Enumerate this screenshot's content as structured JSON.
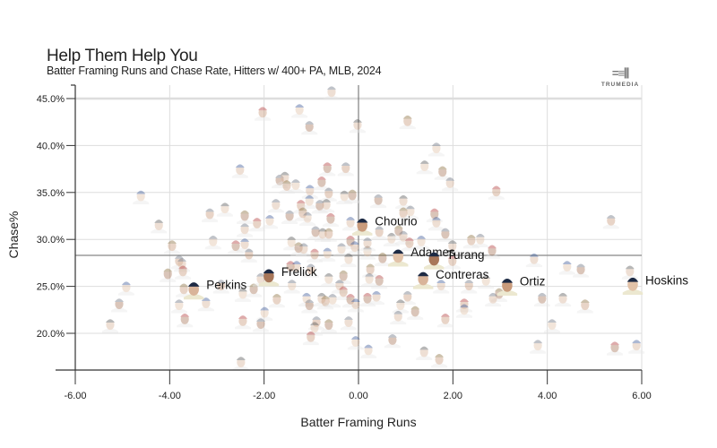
{
  "header": {
    "title": "Help Them Help You",
    "subtitle": "Batter Framing Runs and Chase Rate, Hitters w/ 400+ PA, MLB, 2024",
    "logo_text": "TRUMEDIA"
  },
  "chart_data": {
    "type": "scatter",
    "title": "Help Them Help You",
    "subtitle": "Batter Framing Runs and Chase Rate, Hitters w/ 400+ PA, MLB, 2024",
    "xlabel": "Batter Framing Runs",
    "ylabel": "Chase%",
    "xlim": [
      -6,
      6
    ],
    "ylim": [
      16.1,
      46.4
    ],
    "x_ticks": [
      "-6.00",
      "-4.00",
      "-2.00",
      "0.00",
      "2.00",
      "4.00",
      "6.00"
    ],
    "x_tick_values": [
      -6,
      -4,
      -2,
      0,
      2,
      4,
      6
    ],
    "y_ticks": [
      "20.0%",
      "25.0%",
      "30.0%",
      "35.0%",
      "40.0%",
      "45.0%"
    ],
    "y_tick_values": [
      20,
      25,
      30,
      35,
      40,
      45
    ],
    "grid": true,
    "reference_lines": {
      "x": 0,
      "y": 28.3
    },
    "marker": "player headshot",
    "colors": {
      "highlight_cap": "#1d2a44",
      "grid": "#dddddd",
      "axis": "#333333",
      "ref_line": "#888888"
    },
    "highlighted": [
      {
        "label": "Chourio",
        "x": 0.08,
        "y": 31.6
      },
      {
        "label": "Adames",
        "x": 0.84,
        "y": 28.3
      },
      {
        "label": "Turang",
        "x": 1.6,
        "y": 28.0
      },
      {
        "label": "Contreras",
        "x": 1.37,
        "y": 25.9
      },
      {
        "label": "Ortiz",
        "x": 3.15,
        "y": 25.2
      },
      {
        "label": "Hoskins",
        "x": 5.81,
        "y": 25.3
      },
      {
        "label": "Frelick",
        "x": -1.9,
        "y": 26.2
      },
      {
        "label": "Perkins",
        "x": -3.49,
        "y": 24.8
      }
    ],
    "others": [
      [
        -0.57,
        45.8
      ],
      [
        -2.03,
        43.6
      ],
      [
        -1.25,
        43.9
      ],
      [
        -1.04,
        42.1
      ],
      [
        -0.02,
        42.3
      ],
      [
        1.04,
        42.7
      ],
      [
        1.65,
        39.8
      ],
      [
        -0.66,
        37.7
      ],
      [
        -2.51,
        37.5
      ],
      [
        -0.27,
        37.7
      ],
      [
        1.4,
        37.9
      ],
      [
        1.78,
        37.3
      ],
      [
        1.94,
        36.1
      ],
      [
        2.92,
        35.2
      ],
      [
        -4.61,
        34.7
      ],
      [
        -1.67,
        36.4
      ],
      [
        -1.56,
        36.7
      ],
      [
        -1.52,
        35.8
      ],
      [
        -1.33,
        35.9
      ],
      [
        -0.78,
        36.2
      ],
      [
        -1.03,
        35.3
      ],
      [
        -0.63,
        35.0
      ],
      [
        -0.3,
        34.7
      ],
      [
        -0.13,
        34.8
      ],
      [
        -1.75,
        33.8
      ],
      [
        -1.22,
        33.7
      ],
      [
        -1.04,
        34.2
      ],
      [
        -0.82,
        33.7
      ],
      [
        -0.68,
        33.8
      ],
      [
        -1.18,
        32.9
      ],
      [
        -1.08,
        32.4
      ],
      [
        -0.59,
        32.3
      ],
      [
        -0.17,
        31.9
      ],
      [
        -3.15,
        32.8
      ],
      [
        -2.83,
        33.4
      ],
      [
        -2.41,
        32.6
      ],
      [
        -2.41,
        31.2
      ],
      [
        -2.15,
        31.8
      ],
      [
        -1.88,
        32.1
      ],
      [
        -1.46,
        32.6
      ],
      [
        -4.23,
        31.6
      ],
      [
        -3.95,
        29.4
      ],
      [
        -3.08,
        29.9
      ],
      [
        -2.6,
        29.4
      ],
      [
        -2.41,
        29.6
      ],
      [
        -2.32,
        28.5
      ],
      [
        -1.42,
        29.8
      ],
      [
        -1.27,
        29.2
      ],
      [
        -1.16,
        29.1
      ],
      [
        -0.93,
        28.5
      ],
      [
        -0.66,
        28.6
      ],
      [
        -0.91,
        30.9
      ],
      [
        -0.76,
        30.7
      ],
      [
        -0.63,
        30.7
      ],
      [
        -0.36,
        29.1
      ],
      [
        -0.17,
        29.9
      ],
      [
        -0.08,
        29.3
      ],
      [
        -3.8,
        27.8
      ],
      [
        -0.21,
        28.0
      ],
      [
        -4.04,
        26.4
      ],
      [
        -3.74,
        27.5
      ],
      [
        -3.72,
        26.7
      ],
      [
        -4.92,
        25.0
      ],
      [
        -5.07,
        23.2
      ],
      [
        -5.26,
        21.0
      ],
      [
        -3.7,
        24.8
      ],
      [
        -3.8,
        23.1
      ],
      [
        -3.68,
        21.6
      ],
      [
        -3.23,
        23.3
      ],
      [
        -2.91,
        25.2
      ],
      [
        -2.45,
        24.3
      ],
      [
        -2.22,
        24.8
      ],
      [
        -2.07,
        25.9
      ],
      [
        -2.45,
        21.4
      ],
      [
        -1.99,
        22.3
      ],
      [
        -2.07,
        21.1
      ],
      [
        -2.49,
        17.0
      ],
      [
        -1.73,
        23.7
      ],
      [
        -1.41,
        25.2
      ],
      [
        -1.44,
        27.2
      ],
      [
        -1.31,
        27.2
      ],
      [
        -1.01,
        26.9
      ],
      [
        -0.63,
        25.9
      ],
      [
        -0.32,
        26.2
      ],
      [
        -0.4,
        25.2
      ],
      [
        -0.32,
        24.5
      ],
      [
        -1.1,
        23.8
      ],
      [
        -1.04,
        23.1
      ],
      [
        -0.78,
        23.8
      ],
      [
        -0.7,
        23.5
      ],
      [
        -0.55,
        23.7
      ],
      [
        -0.17,
        23.7
      ],
      [
        -0.06,
        23.2
      ],
      [
        -0.89,
        21.3
      ],
      [
        -0.93,
        20.7
      ],
      [
        -0.63,
        21.0
      ],
      [
        -0.21,
        21.3
      ],
      [
        -1.01,
        19.7
      ],
      [
        -0.06,
        19.2
      ],
      [
        0.42,
        34.3
      ],
      [
        0.95,
        34.2
      ],
      [
        0.95,
        32.9
      ],
      [
        1.1,
        33.1
      ],
      [
        1.61,
        32.8
      ],
      [
        1.65,
        31.9
      ],
      [
        0.44,
        30.9
      ],
      [
        0.7,
        30.2
      ],
      [
        0.85,
        31.0
      ],
      [
        0.95,
        30.4
      ],
      [
        1.08,
        29.7
      ],
      [
        1.33,
        29.9
      ],
      [
        1.84,
        30.7
      ],
      [
        1.99,
        29.4
      ],
      [
        2.39,
        30.0
      ],
      [
        2.58,
        30.1
      ],
      [
        2.83,
        28.9
      ],
      [
        3.72,
        28.0
      ],
      [
        5.35,
        32.1
      ],
      [
        0.19,
        28.8
      ],
      [
        0.51,
        28.1
      ],
      [
        0.19,
        29.7
      ],
      [
        1.99,
        27.8
      ],
      [
        4.42,
        27.2
      ],
      [
        4.71,
        26.9
      ],
      [
        5.75,
        26.7
      ],
      [
        0.25,
        26.9
      ],
      [
        0.23,
        25.9
      ],
      [
        0.44,
        25.7
      ],
      [
        1.75,
        25.2
      ],
      [
        2.34,
        25.2
      ],
      [
        2.7,
        25.7
      ],
      [
        2.98,
        24.3
      ],
      [
        2.85,
        23.8
      ],
      [
        2.24,
        23.2
      ],
      [
        2.24,
        22.6
      ],
      [
        3.89,
        23.8
      ],
      [
        4.33,
        23.8
      ],
      [
        4.8,
        23.1
      ],
      [
        4.1,
        21.0
      ],
      [
        0.19,
        23.8
      ],
      [
        0.38,
        24.0
      ],
      [
        1.04,
        24.0
      ],
      [
        0.89,
        23.1
      ],
      [
        1.2,
        22.4
      ],
      [
        0.84,
        21.9
      ],
      [
        1.84,
        21.6
      ],
      [
        0.21,
        18.3
      ],
      [
        0.72,
        19.4
      ],
      [
        1.39,
        18.1
      ],
      [
        1.71,
        17.3
      ],
      [
        3.8,
        18.8
      ],
      [
        5.43,
        18.6
      ],
      [
        5.89,
        18.8
      ]
    ]
  }
}
